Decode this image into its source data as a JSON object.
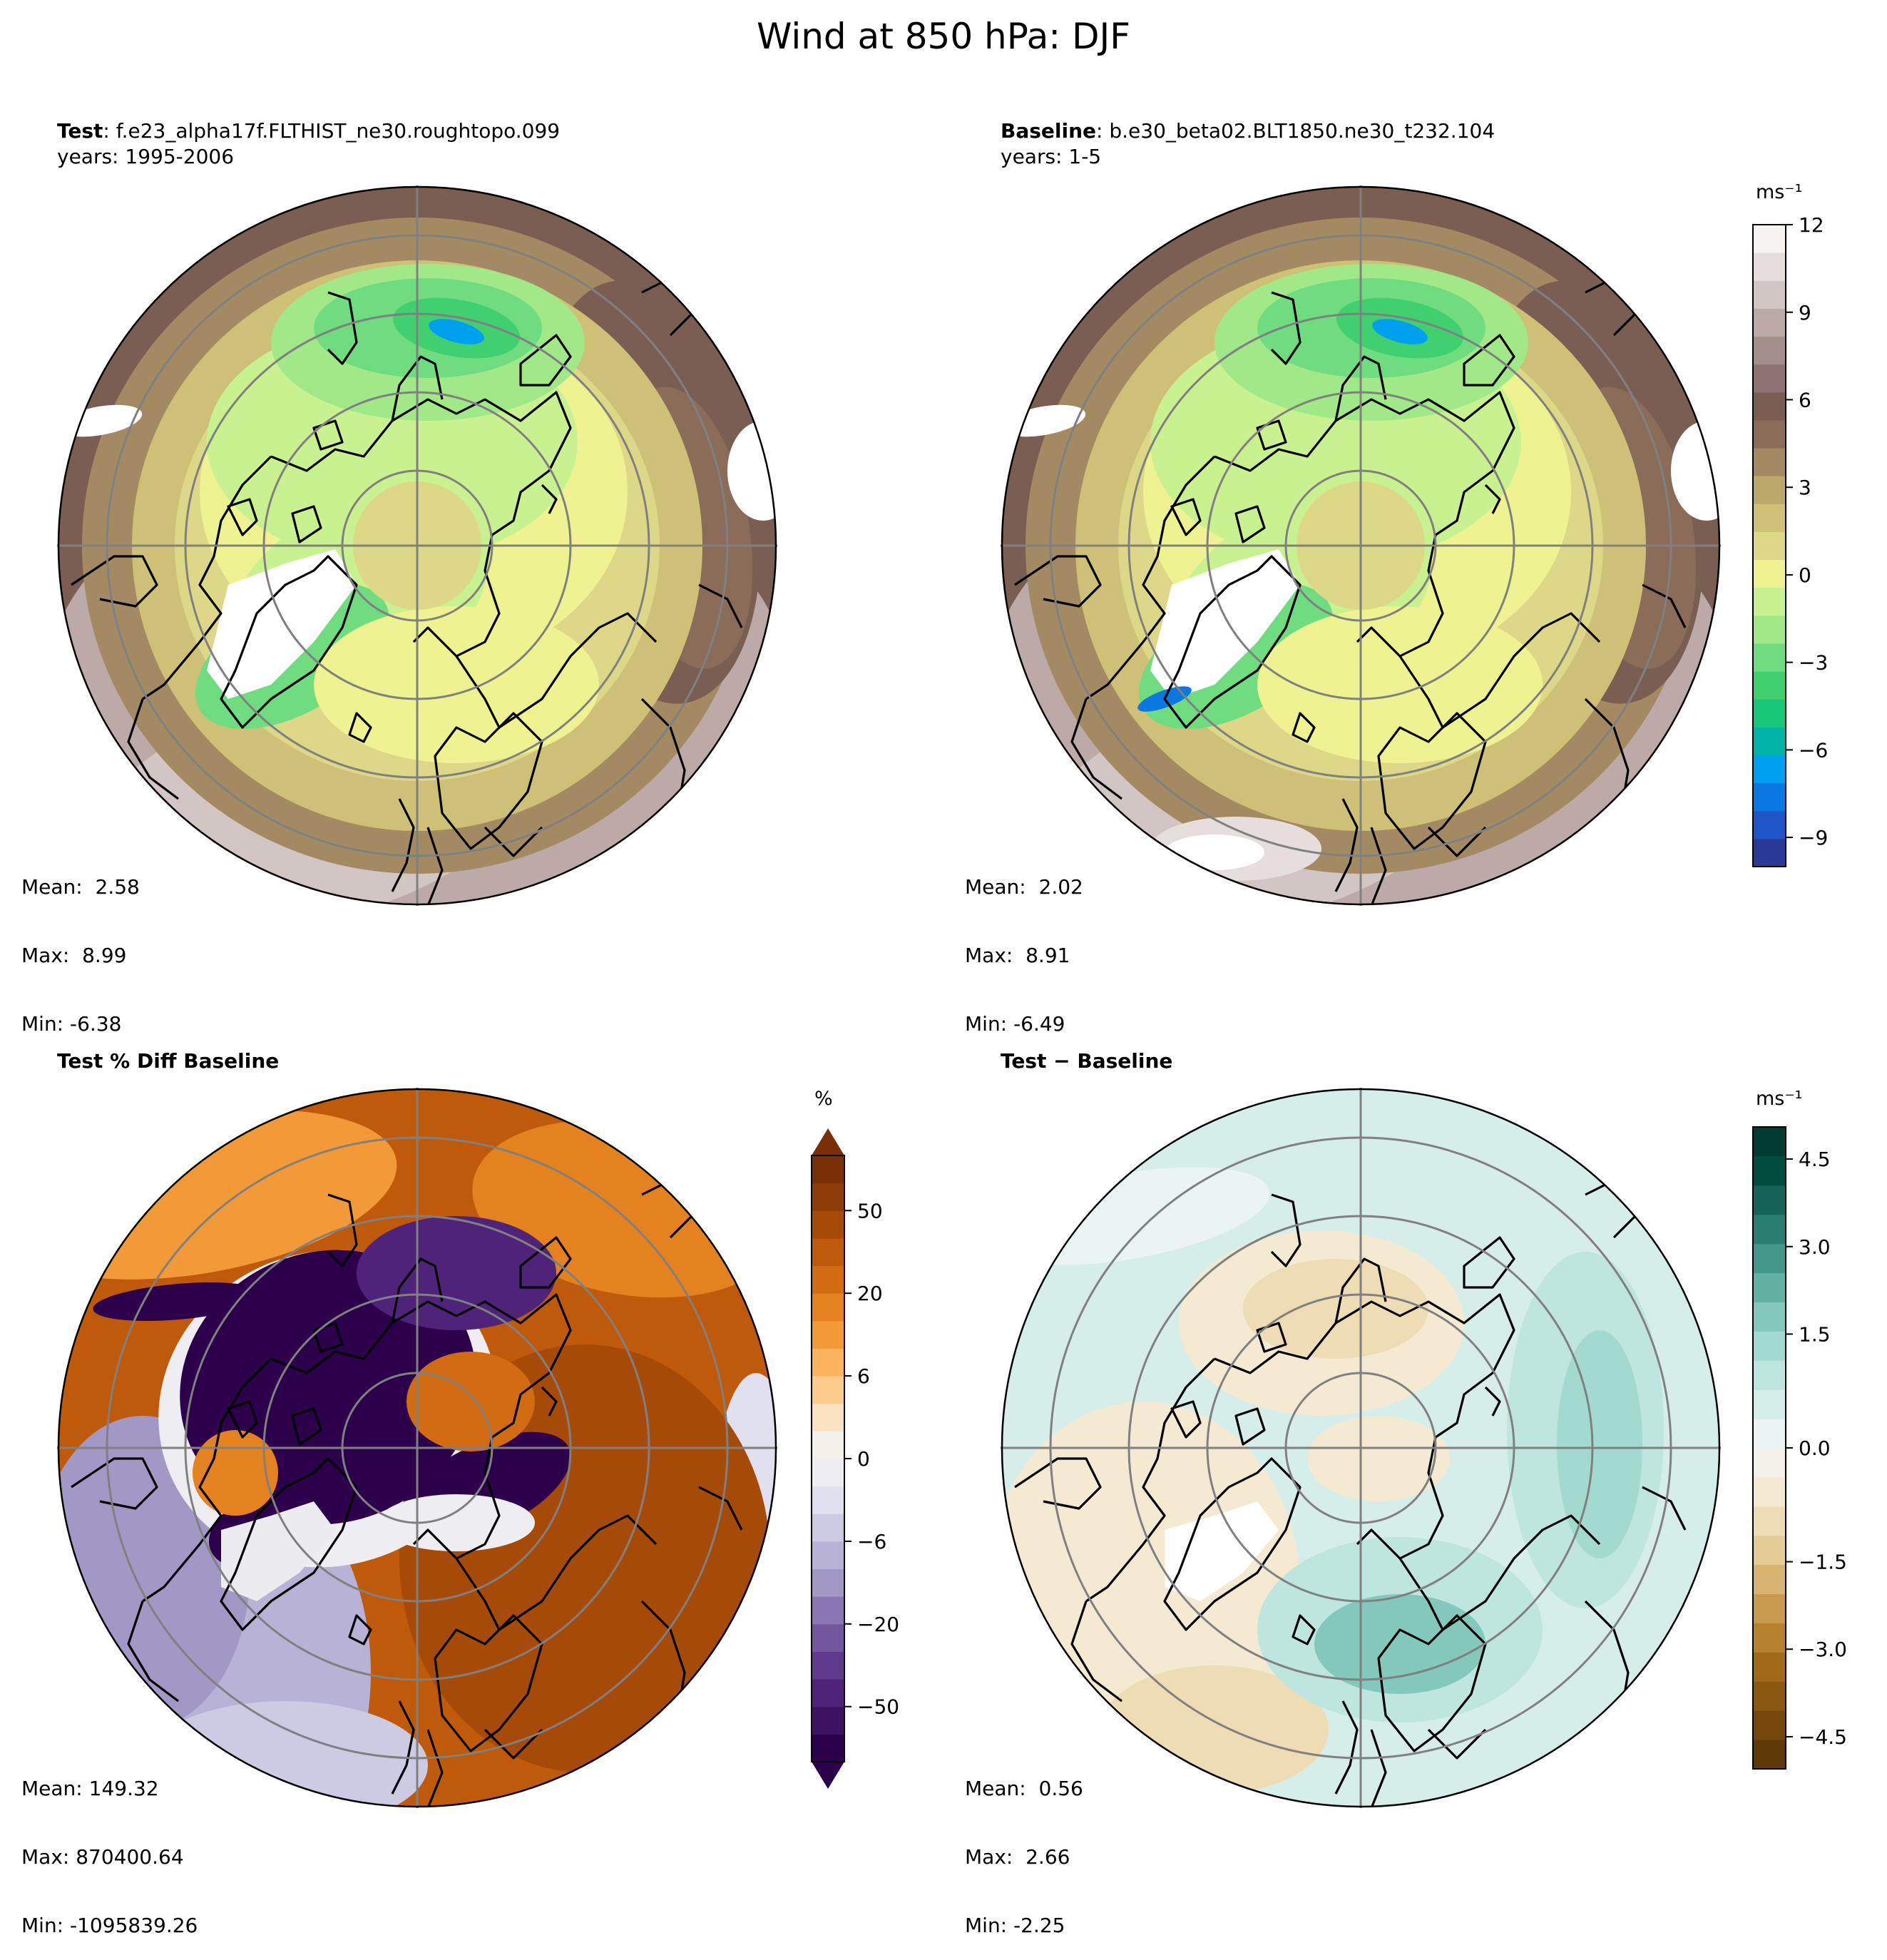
{
  "figure": {
    "title": "Wind at 850 hPa: DJF"
  },
  "panels": {
    "test": {
      "label": "Test",
      "case": ": f.e23_alpha17f.FLTHIST_ne30.roughtopo.099",
      "years": "years: 1995-2006",
      "mean": "Mean:  2.58",
      "max": "Max:  8.99",
      "min": "Min: -6.38"
    },
    "baseline": {
      "label": "Baseline",
      "case": ": b.e30_beta02.BLT1850.ne30_t232.104",
      "years": "years: 1-5",
      "mean": "Mean:  2.02",
      "max": "Max:  8.91",
      "min": "Min: -6.49"
    },
    "pct": {
      "label": "Test % Diff Baseline",
      "mean": "Mean: 149.32",
      "max": "Max: 870400.64",
      "min": "Min: -1095839.26"
    },
    "diff": {
      "label": "Test − Baseline",
      "mean": "Mean:  0.56",
      "max": "Max:  2.66",
      "min": "Min: -2.25"
    }
  },
  "colorbars": {
    "main": {
      "unit": "ms⁻¹",
      "ticks": [
        "12",
        "9",
        "6",
        "3",
        "0",
        "−3",
        "−6",
        "−9"
      ],
      "colors": [
        "#2a3a96",
        "#2055c8",
        "#0a78e0",
        "#00a0f0",
        "#00b4a8",
        "#18c878",
        "#40d070",
        "#70dc80",
        "#a0e888",
        "#c8f290",
        "#eef290",
        "#ddd888",
        "#cfc078",
        "#bba86a",
        "#a48a62",
        "#8a6c58",
        "#7a5e52",
        "#8e7470",
        "#a48e8a",
        "#bcaaa8",
        "#d2c6c4",
        "#e6dedc",
        "#f6f2f0"
      ]
    },
    "pct": {
      "unit": "%",
      "ticks": [
        "50",
        "20",
        "6",
        "0",
        "−6",
        "−20",
        "−50"
      ],
      "colors": [
        "#2d004b",
        "#3e1263",
        "#4f2379",
        "#603a8c",
        "#73579e",
        "#8a76b2",
        "#a198c6",
        "#b7b2d6",
        "#cdcbe4",
        "#e0e0ee",
        "#eeeef2",
        "#f4f0ec",
        "#fbe2c2",
        "#fdcb8c",
        "#fbb35e",
        "#f39a38",
        "#e58220",
        "#d26c12",
        "#be5a0a",
        "#a64a08",
        "#8e3c08",
        "#7a3006"
      ],
      "extend_low": "#2d004b",
      "extend_high": "#7a3006"
    },
    "diff": {
      "unit": "ms⁻¹",
      "ticks": [
        "4.5",
        "3.0",
        "1.5",
        "0.0",
        "−1.5",
        "−3.0",
        "−4.5"
      ],
      "colors": [
        "#5e3a08",
        "#744808",
        "#8a5810",
        "#a06a1a",
        "#b68230",
        "#c89a4e",
        "#d8b472",
        "#e4cc96",
        "#eedcb4",
        "#f4ead2",
        "#f4f2e8",
        "#eaf4f2",
        "#d6eeea",
        "#bee6de",
        "#a2dad0",
        "#84c8bc",
        "#62b2a4",
        "#44988a",
        "#2a7e70",
        "#146458",
        "#024c40",
        "#003c30"
      ]
    }
  },
  "chart_data": [
    {
      "type": "heatmap",
      "title": "Test",
      "subtitle": "f.e23_alpha17f.FLTHIST_ne30.roughtopo.099 years: 1995-2006",
      "projection": "north polar stereographic",
      "units": "ms⁻¹",
      "clim": [
        -10,
        12
      ],
      "stats": {
        "mean": 2.58,
        "max": 8.99,
        "min": -6.38
      }
    },
    {
      "type": "heatmap",
      "title": "Baseline",
      "subtitle": "b.e30_beta02.BLT1850.ne30_t232.104 years: 1-5",
      "projection": "north polar stereographic",
      "units": "ms⁻¹",
      "clim": [
        -10,
        12
      ],
      "stats": {
        "mean": 2.02,
        "max": 8.91,
        "min": -6.49
      }
    },
    {
      "type": "heatmap",
      "title": "Test % Diff Baseline",
      "projection": "north polar stereographic",
      "units": "%",
      "colorbar_ticks": [
        -50,
        -20,
        -6,
        0,
        6,
        20,
        50
      ],
      "stats": {
        "mean": 149.32,
        "max": 870400.64,
        "min": -1095839.26
      }
    },
    {
      "type": "heatmap",
      "title": "Test − Baseline",
      "projection": "north polar stereographic",
      "units": "ms⁻¹",
      "clim": [
        -5,
        5
      ],
      "stats": {
        "mean": 0.56,
        "max": 2.66,
        "min": -2.25
      }
    }
  ]
}
